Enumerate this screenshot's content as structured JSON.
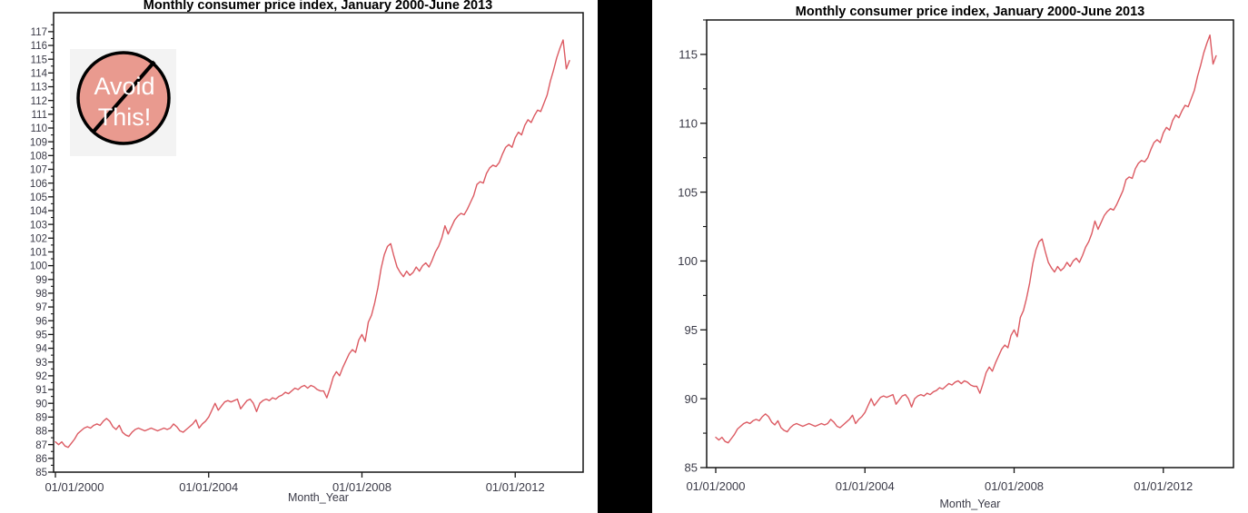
{
  "page": {
    "background": "#FFFFFF",
    "divider_color": "#000000"
  },
  "chart_data": {
    "type": "line",
    "title": "Monthly consumer price index, January 2000-June 2013",
    "xlabel": "Month_Year",
    "x_start": "2000-01",
    "x_end": "2013-06",
    "months_total": 162,
    "x_tick_labels": [
      "01/01/2000",
      "01/01/2004",
      "01/01/2008",
      "01/01/2012"
    ],
    "x_tick_month_indices": [
      0,
      48,
      96,
      144
    ],
    "grid": "off",
    "legend": "none",
    "series": [
      {
        "name": "Monthly consumer price index",
        "color": "#DC5A62",
        "values": [
          87.2,
          87.0,
          87.2,
          86.9,
          86.8,
          87.1,
          87.4,
          87.8,
          88.0,
          88.2,
          88.3,
          88.2,
          88.4,
          88.5,
          88.4,
          88.7,
          88.9,
          88.7,
          88.3,
          88.1,
          88.4,
          87.9,
          87.7,
          87.6,
          87.9,
          88.1,
          88.2,
          88.1,
          88.0,
          88.1,
          88.2,
          88.1,
          88.0,
          88.1,
          88.2,
          88.1,
          88.2,
          88.5,
          88.3,
          88.0,
          87.9,
          88.1,
          88.3,
          88.5,
          88.8,
          88.2,
          88.5,
          88.7,
          89.0,
          89.5,
          90.0,
          89.5,
          89.8,
          90.1,
          90.2,
          90.1,
          90.2,
          90.3,
          89.6,
          89.9,
          90.2,
          90.3,
          90.0,
          89.4,
          90.0,
          90.2,
          90.3,
          90.2,
          90.4,
          90.3,
          90.5,
          90.6,
          90.8,
          90.7,
          90.9,
          91.1,
          91.0,
          91.2,
          91.3,
          91.1,
          91.3,
          91.2,
          91.0,
          90.9,
          90.9,
          90.4,
          91.1,
          91.9,
          92.3,
          92.0,
          92.6,
          93.1,
          93.6,
          93.9,
          93.7,
          94.6,
          95.0,
          94.5,
          95.9,
          96.4,
          97.3,
          98.4,
          99.8,
          100.8,
          101.4,
          101.6,
          100.7,
          99.9,
          99.5,
          99.2,
          99.6,
          99.3,
          99.5,
          99.9,
          99.6,
          100.0,
          100.2,
          99.9,
          100.4,
          101.0,
          101.4,
          102.0,
          102.9,
          102.3,
          102.8,
          103.3,
          103.6,
          103.8,
          103.7,
          104.1,
          104.6,
          105.1,
          105.9,
          106.1,
          106.0,
          106.7,
          107.1,
          107.3,
          107.2,
          107.5,
          108.1,
          108.6,
          108.8,
          108.6,
          109.3,
          109.7,
          109.5,
          110.2,
          110.6,
          110.4,
          110.9,
          111.3,
          111.2,
          111.8,
          112.4,
          113.4,
          114.2,
          115.1,
          115.8,
          116.4,
          114.3,
          114.9
        ]
      }
    ],
    "charts": [
      {
        "id": "left",
        "title": "Monthly consumer price index, January 2000-June 2013",
        "ylim": [
          85,
          117
        ],
        "y_major_step": 1,
        "y_minor_step": 0.5,
        "y_tick_labels": [
          "85",
          "86",
          "87",
          "88",
          "89",
          "90",
          "91",
          "92",
          "93",
          "94",
          "95",
          "96",
          "97",
          "98",
          "99",
          "100",
          "101",
          "102",
          "103",
          "104",
          "105",
          "106",
          "107",
          "108",
          "109",
          "110",
          "111",
          "112",
          "113",
          "114",
          "115",
          "116",
          "117"
        ],
        "annotation": {
          "lines": [
            "Avoid",
            "This!"
          ],
          "circle_fill": "#E99A8F",
          "circle_stroke": "#000000",
          "slash_stroke": "#000000",
          "text_color": "#FFFFFF",
          "patch_bg": "#F3F3F3"
        }
      },
      {
        "id": "right",
        "title": "Monthly consumer price index, January 2000-June 2013",
        "ylim": [
          85,
          115
        ],
        "y_major_step": 5,
        "y_minor_step": 2.5,
        "y_tick_labels": [
          "85",
          "90",
          "95",
          "100",
          "105",
          "110",
          "115"
        ]
      }
    ],
    "colors": {
      "axis": "#161616",
      "tick_label": "#3A3A47",
      "title": "#000000",
      "line": "#DC5A62",
      "background": "#FFFFFF",
      "divider": "#000000"
    }
  }
}
